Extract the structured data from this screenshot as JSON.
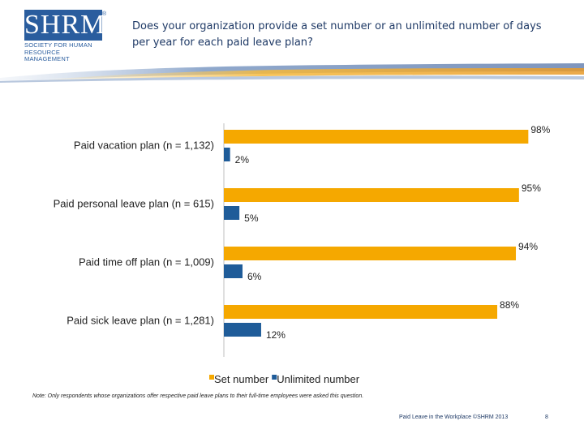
{
  "logo": {
    "wordmark": "SHRM",
    "registered": "®",
    "tagline": "SOCIETY FOR HUMAN RESOURCE MANAGEMENT"
  },
  "title": "Does your organization provide a set number or an unlimited number of days per year for each paid leave plan?",
  "colors": {
    "set_number": "#f5a800",
    "unlimited_number": "#1f5c99",
    "brand": "#2a5d9e"
  },
  "chart_data": {
    "type": "bar",
    "orientation": "horizontal",
    "title": "Does your organization provide a set number or an unlimited number of days per year for each paid leave plan?",
    "categories": [
      "Paid vacation plan (n = 1,132)",
      "Paid personal leave plan (n = 615)",
      "Paid time off plan (n = 1,009)",
      "Paid sick leave plan (n = 1,281)"
    ],
    "series": [
      {
        "name": "Set number",
        "values": [
          98,
          95,
          94,
          88
        ],
        "labels": [
          "98%",
          "95%",
          "94%",
          "88%"
        ]
      },
      {
        "name": "Unlimited number",
        "values": [
          2,
          5,
          6,
          12
        ],
        "labels": [
          "2%",
          "5%",
          "6%",
          "12%"
        ]
      }
    ],
    "xlim": [
      0,
      100
    ],
    "unit": "%",
    "legend_position": "bottom",
    "grid": false
  },
  "note": "Note: Only respondents whose organizations offer respective paid leave plans to their full-time employees were asked this question.",
  "footer": "Paid Leave in the Workplace ©SHRM 2013",
  "page_number": "8"
}
